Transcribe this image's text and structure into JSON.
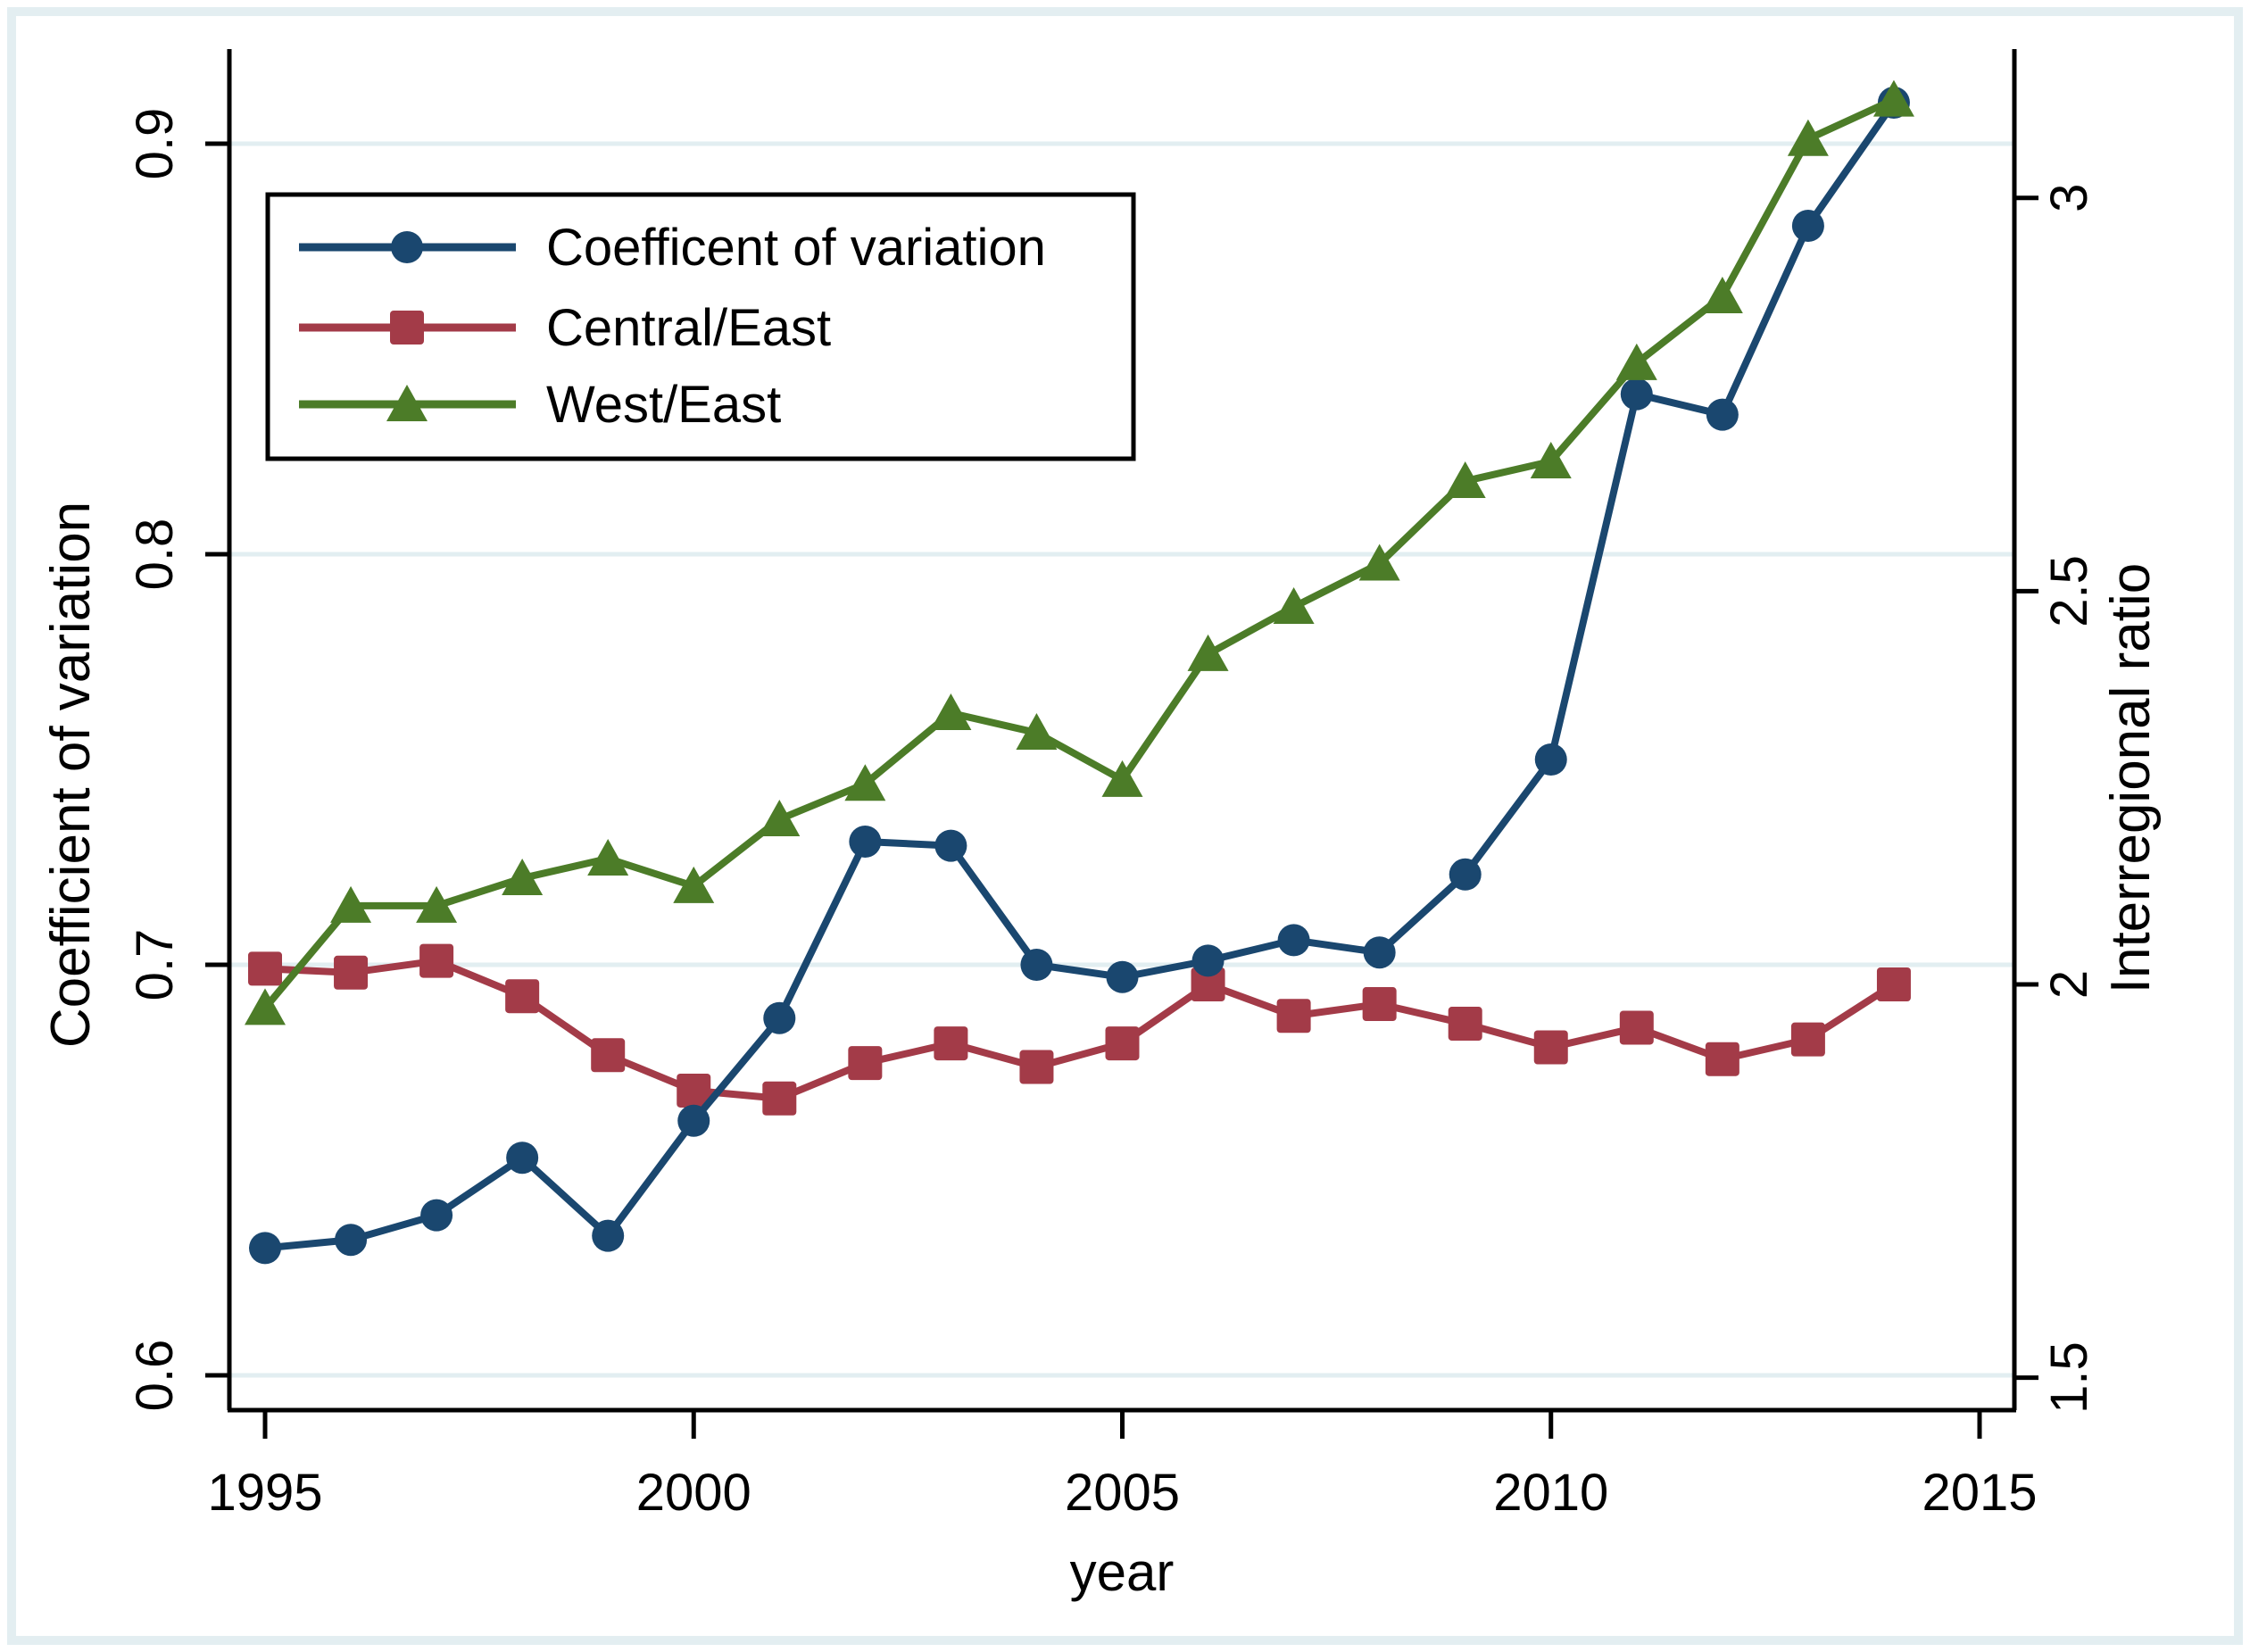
{
  "figure": {
    "background_color": "#ffffff",
    "frame_color": "#e3eef1",
    "grid_color": "#e2eef1",
    "axis_color": "#000000"
  },
  "chart_data": {
    "type": "line",
    "title": "",
    "xlabel": "year",
    "grid": "horizontal, at left-axis ticks",
    "x": [
      1995,
      1996,
      1997,
      1998,
      1999,
      2000,
      2001,
      2002,
      2003,
      2004,
      2005,
      2006,
      2007,
      2008,
      2009,
      2010,
      2011,
      2012,
      2013,
      2014
    ],
    "x_ticks": [
      1995,
      2000,
      2005,
      2010,
      2015
    ],
    "x_range": [
      1994.6,
      2015.4
    ],
    "left_axis": {
      "label": "Coefficient of variation",
      "tick_labels": [
        "0.6",
        "0.7",
        "0.8",
        "0.9"
      ],
      "tick_values": [
        0.6,
        0.7,
        0.8,
        0.9
      ],
      "range": [
        0.592,
        0.923
      ]
    },
    "right_axis": {
      "label": "Interregional ratio",
      "tick_labels": [
        "1.5",
        "2",
        "2.5",
        "3"
      ],
      "tick_values": [
        1.5,
        2,
        2.5,
        3
      ],
      "range": [
        1.459,
        3.189
      ]
    },
    "legend": {
      "position": "top-left-inside",
      "border_color": "#000000",
      "background": "#ffffff"
    },
    "series": [
      {
        "name": "Coefficent of variation",
        "axis": "left",
        "color": "#1a476f",
        "marker": "circle",
        "values": [
          0.631,
          0.633,
          0.639,
          0.653,
          0.634,
          0.662,
          0.687,
          0.73,
          0.729,
          0.7,
          0.697,
          0.701,
          0.706,
          0.703,
          0.722,
          0.75,
          0.839,
          0.834,
          0.88,
          0.91
        ]
      },
      {
        "name": "Central/East",
        "axis": "right",
        "color": "#a33b48",
        "marker": "square",
        "values": [
          2.02,
          2.015,
          2.03,
          1.985,
          1.91,
          1.865,
          1.855,
          1.9,
          1.925,
          1.895,
          1.925,
          2.0,
          1.96,
          1.975,
          1.95,
          1.92,
          1.945,
          1.905,
          1.93,
          2.0
        ]
      },
      {
        "name": "West/East",
        "axis": "right",
        "color": "#4c7c28",
        "marker": "triangle",
        "values": [
          1.97,
          2.1,
          2.1,
          2.135,
          2.16,
          2.125,
          2.21,
          2.255,
          2.345,
          2.32,
          2.26,
          2.42,
          2.48,
          2.535,
          2.64,
          2.665,
          2.79,
          2.875,
          3.075,
          3.125
        ]
      }
    ]
  }
}
